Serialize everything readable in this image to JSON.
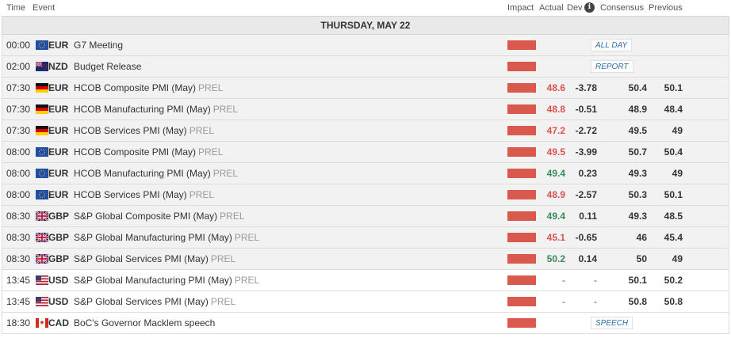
{
  "header": {
    "time": "Time",
    "event": "Event",
    "impact": "Impact",
    "actual": "Actual",
    "dev": "Dev",
    "info": "i",
    "consensus": "Consensus",
    "previous": "Previous"
  },
  "day": "THURSDAY, MAY 22",
  "colors": {
    "impact": "#d9594c",
    "positive": "#3a8a5a",
    "negative": "#d9534f"
  },
  "events": [
    {
      "time": "00:00",
      "flag": "eu-flag-icon",
      "currency": "EUR",
      "name": "G7 Meeting",
      "tag": "",
      "actual": "",
      "actual_dir": "",
      "dev": "",
      "consensus": "",
      "previous": "",
      "badge": "ALL DAY"
    },
    {
      "time": "02:00",
      "flag": "nz-flag-icon",
      "currency": "NZD",
      "name": "Budget Release",
      "tag": "",
      "actual": "",
      "actual_dir": "",
      "dev": "",
      "consensus": "",
      "previous": "",
      "badge": "REPORT"
    },
    {
      "time": "07:30",
      "flag": "de-flag-icon",
      "currency": "EUR",
      "name": "HCOB Composite PMI (May)",
      "tag": "PREL",
      "actual": "48.6",
      "actual_dir": "down",
      "dev": "-3.78",
      "consensus": "50.4",
      "previous": "50.1",
      "badge": ""
    },
    {
      "time": "07:30",
      "flag": "de-flag-icon",
      "currency": "EUR",
      "name": "HCOB Manufacturing PMI (May)",
      "tag": "PREL",
      "actual": "48.8",
      "actual_dir": "down",
      "dev": "-0.51",
      "consensus": "48.9",
      "previous": "48.4",
      "badge": ""
    },
    {
      "time": "07:30",
      "flag": "de-flag-icon",
      "currency": "EUR",
      "name": "HCOB Services PMI (May)",
      "tag": "PREL",
      "actual": "47.2",
      "actual_dir": "down",
      "dev": "-2.72",
      "consensus": "49.5",
      "previous": "49",
      "badge": ""
    },
    {
      "time": "08:00",
      "flag": "eu-flag-icon",
      "currency": "EUR",
      "name": "HCOB Composite PMI (May)",
      "tag": "PREL",
      "actual": "49.5",
      "actual_dir": "down",
      "dev": "-3.99",
      "consensus": "50.7",
      "previous": "50.4",
      "badge": ""
    },
    {
      "time": "08:00",
      "flag": "eu-flag-icon",
      "currency": "EUR",
      "name": "HCOB Manufacturing PMI (May)",
      "tag": "PREL",
      "actual": "49.4",
      "actual_dir": "up",
      "dev": "0.23",
      "consensus": "49.3",
      "previous": "49",
      "badge": ""
    },
    {
      "time": "08:00",
      "flag": "eu-flag-icon",
      "currency": "EUR",
      "name": "HCOB Services PMI (May)",
      "tag": "PREL",
      "actual": "48.9",
      "actual_dir": "down",
      "dev": "-2.57",
      "consensus": "50.3",
      "previous": "50.1",
      "badge": ""
    },
    {
      "time": "08:30",
      "flag": "gb-flag-icon",
      "currency": "GBP",
      "name": "S&P Global Composite PMI (May)",
      "tag": "PREL",
      "actual": "49.4",
      "actual_dir": "up",
      "dev": "0.11",
      "consensus": "49.3",
      "previous": "48.5",
      "badge": ""
    },
    {
      "time": "08:30",
      "flag": "gb-flag-icon",
      "currency": "GBP",
      "name": "S&P Global Manufacturing PMI (May)",
      "tag": "PREL",
      "actual": "45.1",
      "actual_dir": "down",
      "dev": "-0.65",
      "consensus": "46",
      "previous": "45.4",
      "badge": ""
    },
    {
      "time": "08:30",
      "flag": "gb-flag-icon",
      "currency": "GBP",
      "name": "S&P Global Services PMI (May)",
      "tag": "PREL",
      "actual": "50.2",
      "actual_dir": "up",
      "dev": "0.14",
      "consensus": "50",
      "previous": "49",
      "badge": ""
    },
    {
      "time": "13:45",
      "flag": "us-flag-icon",
      "currency": "USD",
      "name": "S&P Global Manufacturing PMI (May)",
      "tag": "PREL",
      "actual": "-",
      "actual_dir": "dash",
      "dev": "-",
      "consensus": "50.1",
      "previous": "50.2",
      "badge": ""
    },
    {
      "time": "13:45",
      "flag": "us-flag-icon",
      "currency": "USD",
      "name": "S&P Global Services PMI (May)",
      "tag": "PREL",
      "actual": "-",
      "actual_dir": "dash",
      "dev": "-",
      "consensus": "50.8",
      "previous": "50.8",
      "badge": ""
    },
    {
      "time": "18:30",
      "flag": "ca-flag-icon",
      "currency": "CAD",
      "name": "BoC's Governor Macklem speech",
      "tag": "",
      "actual": "",
      "actual_dir": "",
      "dev": "",
      "consensus": "",
      "previous": "",
      "badge": "SPEECH"
    }
  ]
}
